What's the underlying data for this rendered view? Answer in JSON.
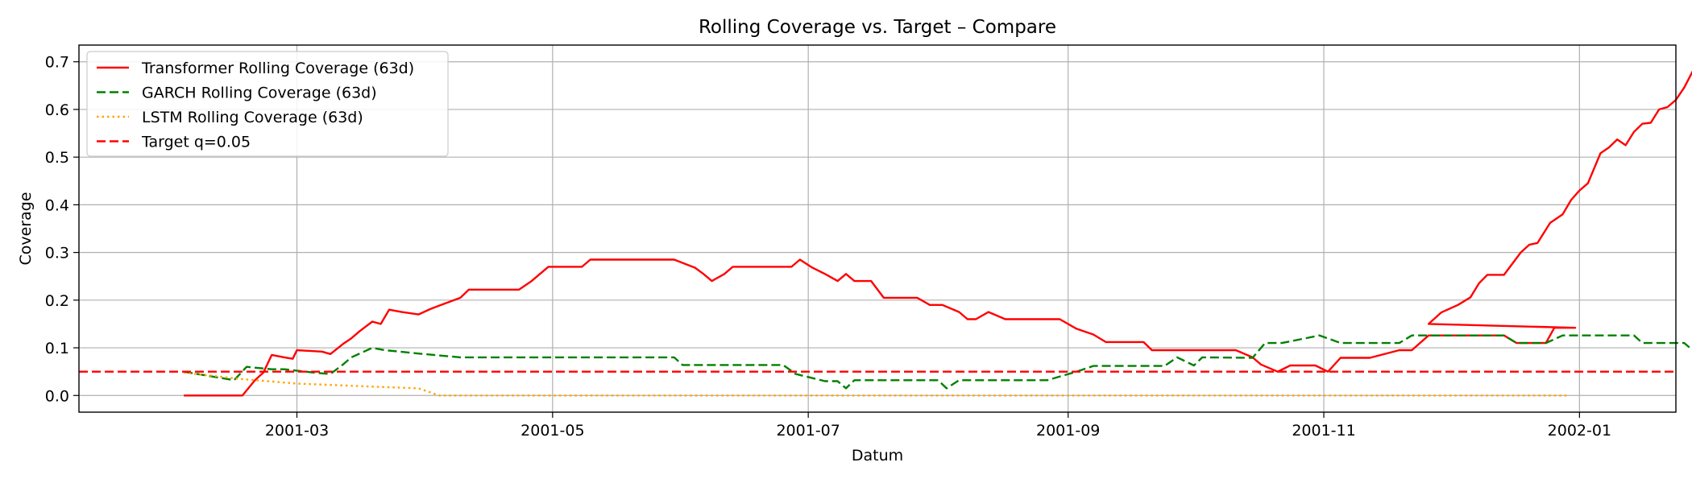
{
  "chart_data": {
    "type": "line",
    "title": "Rolling Coverage vs. Target – Compare",
    "xlabel": "Datum",
    "ylabel": "Coverage",
    "xlim": [
      "2001-01-08",
      "2002-01-24"
    ],
    "ylim": [
      -0.035,
      0.735
    ],
    "xticks": [
      "2001-03-01",
      "2001-05-01",
      "2001-07-01",
      "2001-09-01",
      "2001-11-01",
      "2002-01-01"
    ],
    "xtick_labels": [
      "2001-03",
      "2001-05",
      "2001-07",
      "2001-09",
      "2001-11",
      "2002-01"
    ],
    "yticks": [
      0.0,
      0.1,
      0.2,
      0.3,
      0.4,
      0.5,
      0.6,
      0.7
    ],
    "ytick_labels": [
      "0.0",
      "0.1",
      "0.2",
      "0.3",
      "0.4",
      "0.5",
      "0.6",
      "0.7"
    ],
    "grid": true,
    "legend_position": "top-left",
    "series": [
      {
        "name": "Transformer Rolling Coverage (63d)",
        "color": "#ff0000",
        "style": "solid",
        "points": [
          [
            "2001-02-02",
            0.0
          ],
          [
            "2001-02-16",
            0.0
          ],
          [
            "2001-02-19",
            0.032
          ],
          [
            "2001-02-21",
            0.048
          ],
          [
            "2001-02-23",
            0.085
          ],
          [
            "2001-02-26",
            0.08
          ],
          [
            "2001-02-28",
            0.077
          ],
          [
            "2001-03-01",
            0.095
          ],
          [
            "2001-03-07",
            0.092
          ],
          [
            "2001-03-09",
            0.087
          ],
          [
            "2001-03-12",
            0.108
          ],
          [
            "2001-03-14",
            0.12
          ],
          [
            "2001-03-16",
            0.135
          ],
          [
            "2001-03-19",
            0.155
          ],
          [
            "2001-03-21",
            0.15
          ],
          [
            "2001-03-23",
            0.18
          ],
          [
            "2001-03-26",
            0.175
          ],
          [
            "2001-03-30",
            0.17
          ],
          [
            "2001-04-02",
            0.182
          ],
          [
            "2001-04-05",
            0.192
          ],
          [
            "2001-04-09",
            0.205
          ],
          [
            "2001-04-11",
            0.222
          ],
          [
            "2001-04-23",
            0.222
          ],
          [
            "2001-04-26",
            0.24
          ],
          [
            "2001-04-30",
            0.27
          ],
          [
            "2001-05-08",
            0.27
          ],
          [
            "2001-05-10",
            0.285
          ],
          [
            "2001-05-30",
            0.285
          ],
          [
            "2001-06-04",
            0.268
          ],
          [
            "2001-06-06",
            0.255
          ],
          [
            "2001-06-08",
            0.24
          ],
          [
            "2001-06-11",
            0.255
          ],
          [
            "2001-06-13",
            0.27
          ],
          [
            "2001-06-27",
            0.27
          ],
          [
            "2001-06-29",
            0.285
          ],
          [
            "2001-07-02",
            0.268
          ],
          [
            "2001-07-05",
            0.255
          ],
          [
            "2001-07-08",
            0.24
          ],
          [
            "2001-07-10",
            0.255
          ],
          [
            "2001-07-12",
            0.24
          ],
          [
            "2001-07-16",
            0.24
          ],
          [
            "2001-07-19",
            0.205
          ],
          [
            "2001-07-27",
            0.205
          ],
          [
            "2001-07-30",
            0.19
          ],
          [
            "2001-08-02",
            0.19
          ],
          [
            "2001-08-06",
            0.175
          ],
          [
            "2001-08-08",
            0.16
          ],
          [
            "2001-08-10",
            0.16
          ],
          [
            "2001-08-13",
            0.175
          ],
          [
            "2001-08-17",
            0.16
          ],
          [
            "2001-08-30",
            0.16
          ],
          [
            "2001-09-03",
            0.14
          ],
          [
            "2001-09-07",
            0.128
          ],
          [
            "2001-09-10",
            0.112
          ],
          [
            "2001-09-19",
            0.112
          ],
          [
            "2001-09-21",
            0.095
          ],
          [
            "2001-10-11",
            0.095
          ],
          [
            "2001-10-15",
            0.08
          ],
          [
            "2001-10-17",
            0.065
          ],
          [
            "2001-10-21",
            0.05
          ],
          [
            "2001-10-24",
            0.063
          ],
          [
            "2001-10-30",
            0.063
          ],
          [
            "2001-11-02",
            0.05
          ],
          [
            "2001-11-05",
            0.079
          ],
          [
            "2001-11-12",
            0.079
          ],
          [
            "2001-11-19",
            0.095
          ],
          [
            "2001-11-22",
            0.095
          ],
          [
            "2001-11-26",
            0.126
          ],
          [
            "2001-12-14",
            0.126
          ],
          [
            "2001-12-17",
            0.11
          ],
          [
            "2001-12-24",
            0.11
          ],
          [
            "2001-12-26",
            0.142
          ],
          [
            "2001-12-31",
            0.142
          ],
          [
            "2001-11-26",
            0.15
          ],
          [
            "2001-11-29",
            0.174
          ],
          [
            "2001-12-03",
            0.19
          ],
          [
            "2001-12-06",
            0.206
          ],
          [
            "2001-12-08",
            0.235
          ],
          [
            "2001-12-10",
            0.253
          ],
          [
            "2001-12-14",
            0.253
          ],
          [
            "2001-12-18",
            0.3
          ],
          [
            "2001-12-20",
            0.316
          ],
          [
            "2001-12-22",
            0.32
          ],
          [
            "2001-12-25",
            0.362
          ],
          [
            "2001-12-28",
            0.38
          ],
          [
            "2001-12-30",
            0.41
          ],
          [
            "2002-01-01",
            0.43
          ],
          [
            "2002-01-03",
            0.445
          ],
          [
            "2002-01-06",
            0.508
          ],
          [
            "2002-01-08",
            0.52
          ],
          [
            "2002-01-10",
            0.537
          ],
          [
            "2002-01-12",
            0.525
          ],
          [
            "2002-01-14",
            0.553
          ],
          [
            "2002-01-16",
            0.57
          ],
          [
            "2002-01-18",
            0.572
          ],
          [
            "2002-01-20",
            0.6
          ],
          [
            "2002-01-22",
            0.605
          ],
          [
            "2002-01-24",
            0.62
          ],
          [
            "2002-01-26",
            0.646
          ],
          [
            "2002-01-28",
            0.68
          ],
          [
            "2002-01-30",
            0.698
          ]
        ]
      },
      {
        "name": "GARCH Rolling Coverage (63d)",
        "color": "#008000",
        "style": "dashed",
        "points": [
          [
            "2001-02-02",
            0.05
          ],
          [
            "2001-02-14",
            0.032
          ],
          [
            "2001-02-17",
            0.06
          ],
          [
            "2001-02-23",
            0.055
          ],
          [
            "2001-02-26",
            0.055
          ],
          [
            "2001-03-06",
            0.047
          ],
          [
            "2001-03-09",
            0.045
          ],
          [
            "2001-03-12",
            0.065
          ],
          [
            "2001-03-14",
            0.08
          ],
          [
            "2001-03-19",
            0.1
          ],
          [
            "2001-03-22",
            0.095
          ],
          [
            "2001-03-30",
            0.088
          ],
          [
            "2001-04-09",
            0.08
          ],
          [
            "2001-05-30",
            0.08
          ],
          [
            "2001-06-01",
            0.064
          ],
          [
            "2001-06-25",
            0.064
          ],
          [
            "2001-06-28",
            0.045
          ],
          [
            "2001-07-05",
            0.03
          ],
          [
            "2001-07-08",
            0.03
          ],
          [
            "2001-07-10",
            0.015
          ],
          [
            "2001-07-12",
            0.032
          ],
          [
            "2001-08-01",
            0.032
          ],
          [
            "2001-08-03",
            0.015
          ],
          [
            "2001-08-06",
            0.032
          ],
          [
            "2001-08-27",
            0.032
          ],
          [
            "2001-09-03",
            0.05
          ],
          [
            "2001-09-07",
            0.062
          ],
          [
            "2001-09-24",
            0.062
          ],
          [
            "2001-09-27",
            0.08
          ],
          [
            "2001-10-01",
            0.063
          ],
          [
            "2001-10-03",
            0.08
          ],
          [
            "2001-10-15",
            0.079
          ],
          [
            "2001-10-18",
            0.11
          ],
          [
            "2001-10-22",
            0.11
          ],
          [
            "2001-10-31",
            0.126
          ],
          [
            "2001-11-05",
            0.11
          ],
          [
            "2001-11-19",
            0.11
          ],
          [
            "2001-11-22",
            0.126
          ],
          [
            "2001-12-14",
            0.126
          ],
          [
            "2001-12-17",
            0.11
          ],
          [
            "2001-12-24",
            0.11
          ],
          [
            "2001-12-28",
            0.126
          ],
          [
            "2002-01-14",
            0.126
          ],
          [
            "2002-01-16",
            0.11
          ],
          [
            "2002-01-26",
            0.11
          ],
          [
            "2002-01-28",
            0.095
          ]
        ]
      },
      {
        "name": "LSTM Rolling Coverage (63d)",
        "color": "#ffa500",
        "style": "dotted",
        "points": [
          [
            "2001-02-02",
            0.048
          ],
          [
            "2001-02-15",
            0.035
          ],
          [
            "2001-03-01",
            0.025
          ],
          [
            "2001-03-15",
            0.02
          ],
          [
            "2001-03-30",
            0.015
          ],
          [
            "2001-04-04",
            0.0
          ],
          [
            "2001-12-29",
            0.0
          ]
        ]
      },
      {
        "name": "Target q=0.05",
        "color": "#ff0000",
        "style": "dashed-long",
        "points": [
          [
            "2001-01-08",
            0.05
          ],
          [
            "2002-01-24",
            0.05
          ]
        ]
      }
    ]
  }
}
